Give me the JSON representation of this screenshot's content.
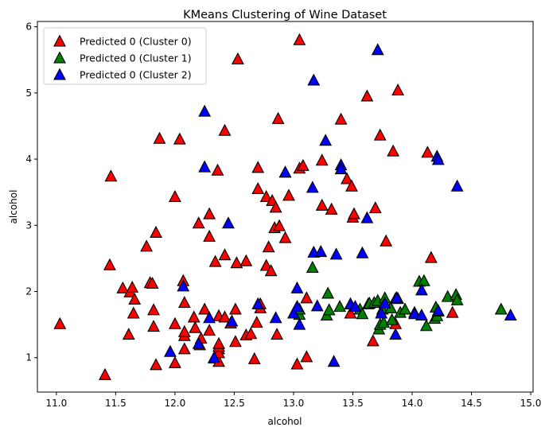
{
  "chart_data": {
    "type": "scatter",
    "title": "KMeans Clustering of Wine Dataset",
    "xlabel": "alcohol",
    "ylabel": "alcohol",
    "xlim": [
      10.84,
      15.02
    ],
    "ylim": [
      0.48,
      6.08
    ],
    "xticks": [
      "11.0",
      "11.5",
      "12.0",
      "12.5",
      "13.0",
      "13.5",
      "14.0",
      "14.5",
      "15.0"
    ],
    "yticks": [
      "1",
      "2",
      "3",
      "4",
      "5",
      "6"
    ],
    "xtick_values": [
      11.0,
      11.5,
      12.0,
      12.5,
      13.0,
      13.5,
      14.0,
      14.5,
      15.0
    ],
    "ytick_values": [
      1,
      2,
      3,
      4,
      5,
      6
    ],
    "grid": false,
    "legend_position": "top-left",
    "marker": "triangle",
    "series": [
      {
        "name": "Predicted 0 (Cluster 0)",
        "color": "#ff0000",
        "points": [
          [
            11.03,
            1.51
          ],
          [
            11.41,
            0.74
          ],
          [
            11.45,
            2.4
          ],
          [
            11.46,
            3.74
          ],
          [
            11.56,
            2.05
          ],
          [
            11.61,
            1.35
          ],
          [
            11.62,
            1.99
          ],
          [
            11.64,
            2.06
          ],
          [
            11.65,
            1.67
          ],
          [
            11.66,
            1.88
          ],
          [
            11.76,
            2.68
          ],
          [
            11.79,
            2.13
          ],
          [
            11.81,
            2.12
          ],
          [
            11.82,
            1.72
          ],
          [
            11.82,
            1.47
          ],
          [
            11.84,
            0.89
          ],
          [
            11.84,
            2.89
          ],
          [
            11.87,
            4.31
          ],
          [
            12.0,
            0.92
          ],
          [
            12.0,
            1.51
          ],
          [
            12.0,
            3.43
          ],
          [
            12.04,
            4.3
          ],
          [
            12.07,
            2.16
          ],
          [
            12.08,
            1.33
          ],
          [
            12.08,
            1.39
          ],
          [
            12.08,
            1.13
          ],
          [
            12.08,
            1.83
          ],
          [
            12.16,
            1.61
          ],
          [
            12.17,
            1.45
          ],
          [
            12.2,
            3.03
          ],
          [
            12.21,
            1.19
          ],
          [
            12.22,
            1.29
          ],
          [
            12.25,
            1.73
          ],
          [
            12.29,
            3.17
          ],
          [
            12.29,
            2.83
          ],
          [
            12.29,
            1.41
          ],
          [
            12.33,
            0.99
          ],
          [
            12.34,
            2.45
          ],
          [
            12.36,
            3.83
          ],
          [
            12.37,
            0.94
          ],
          [
            12.37,
            1.13
          ],
          [
            12.37,
            1.07
          ],
          [
            12.37,
            1.17
          ],
          [
            12.37,
            1.21
          ],
          [
            12.37,
            1.63
          ],
          [
            12.42,
            4.43
          ],
          [
            12.42,
            2.55
          ],
          [
            12.42,
            1.61
          ],
          [
            12.47,
            1.52
          ],
          [
            12.51,
            1.73
          ],
          [
            12.51,
            1.24
          ],
          [
            12.52,
            2.43
          ],
          [
            12.53,
            5.51
          ],
          [
            12.6,
            1.34
          ],
          [
            12.6,
            2.46
          ],
          [
            12.64,
            1.36
          ],
          [
            12.67,
            0.98
          ],
          [
            12.69,
            1.53
          ],
          [
            12.7,
            3.87
          ],
          [
            12.7,
            3.55
          ],
          [
            12.72,
            1.75
          ],
          [
            12.72,
            1.81
          ],
          [
            12.77,
            3.43
          ],
          [
            12.77,
            2.39
          ],
          [
            12.79,
            2.67
          ],
          [
            12.81,
            2.31
          ],
          [
            12.82,
            3.37
          ],
          [
            12.84,
            2.96
          ],
          [
            12.85,
            3.27
          ],
          [
            12.86,
            1.35
          ],
          [
            12.87,
            4.61
          ],
          [
            12.88,
            2.99
          ],
          [
            12.93,
            2.81
          ],
          [
            12.93,
            3.8
          ],
          [
            12.96,
            3.45
          ],
          [
            13.03,
            0.9
          ],
          [
            13.05,
            5.8
          ],
          [
            13.05,
            3.86
          ],
          [
            13.08,
            3.9
          ],
          [
            13.11,
            1.9
          ],
          [
            13.11,
            1.01
          ],
          [
            13.24,
            3.98
          ],
          [
            13.24,
            3.3
          ],
          [
            13.32,
            3.24
          ],
          [
            13.4,
            4.6
          ],
          [
            13.45,
            3.7
          ],
          [
            13.48,
            1.67
          ],
          [
            13.49,
            3.59
          ],
          [
            13.5,
            3.12
          ],
          [
            13.51,
            3.17
          ],
          [
            13.62,
            4.95
          ],
          [
            13.67,
            1.25
          ],
          [
            13.69,
            3.26
          ],
          [
            13.73,
            4.36
          ],
          [
            13.78,
            2.76
          ],
          [
            13.82,
            1.75
          ],
          [
            13.84,
            4.12
          ],
          [
            13.86,
            1.51
          ],
          [
            13.88,
            5.04
          ],
          [
            14.13,
            4.1
          ],
          [
            14.16,
            2.51
          ],
          [
            14.34,
            1.68
          ]
        ]
      },
      {
        "name": "Predicted 0 (Cluster 1)",
        "color": "#008000",
        "points": [
          [
            13.05,
            1.65
          ],
          [
            13.05,
            1.73
          ],
          [
            13.16,
            2.36
          ],
          [
            13.28,
            1.64
          ],
          [
            13.29,
            1.97
          ],
          [
            13.3,
            1.72
          ],
          [
            13.39,
            1.77
          ],
          [
            13.48,
            1.81
          ],
          [
            13.56,
            1.73
          ],
          [
            13.58,
            1.66
          ],
          [
            13.63,
            1.81
          ],
          [
            13.64,
            1.82
          ],
          [
            13.68,
            1.83
          ],
          [
            13.71,
            1.86
          ],
          [
            13.72,
            1.43
          ],
          [
            13.73,
            1.5
          ],
          [
            13.74,
            1.67
          ],
          [
            13.75,
            1.73
          ],
          [
            13.76,
            1.53
          ],
          [
            13.77,
            1.9
          ],
          [
            13.82,
            1.75
          ],
          [
            13.83,
            1.57
          ],
          [
            13.86,
            1.89
          ],
          [
            13.87,
            1.9
          ],
          [
            13.88,
            1.89
          ],
          [
            13.9,
            1.68
          ],
          [
            13.94,
            1.73
          ],
          [
            14.02,
            1.68
          ],
          [
            14.06,
            2.15
          ],
          [
            14.1,
            2.16
          ],
          [
            14.12,
            1.48
          ],
          [
            14.19,
            1.59
          ],
          [
            14.2,
            1.76
          ],
          [
            14.21,
            1.63
          ],
          [
            14.22,
            1.7
          ],
          [
            14.3,
            1.92
          ],
          [
            14.37,
            1.95
          ],
          [
            14.38,
            1.87
          ],
          [
            14.75,
            1.73
          ]
        ]
      },
      {
        "name": "Predicted 0 (Cluster 2)",
        "color": "#0000ff",
        "points": [
          [
            11.96,
            1.09
          ],
          [
            12.07,
            2.08
          ],
          [
            12.2,
            1.21
          ],
          [
            12.25,
            4.72
          ],
          [
            12.25,
            3.88
          ],
          [
            12.29,
            1.6
          ],
          [
            12.33,
            1.0
          ],
          [
            12.45,
            3.03
          ],
          [
            12.48,
            1.55
          ],
          [
            12.7,
            1.81
          ],
          [
            12.85,
            1.6
          ],
          [
            12.93,
            3.8
          ],
          [
            13.0,
            1.67
          ],
          [
            13.03,
            2.05
          ],
          [
            13.03,
            1.77
          ],
          [
            13.05,
            1.5
          ],
          [
            13.16,
            3.57
          ],
          [
            13.17,
            5.19
          ],
          [
            13.17,
            2.59
          ],
          [
            13.2,
            1.78
          ],
          [
            13.23,
            2.6
          ],
          [
            13.27,
            4.28
          ],
          [
            13.34,
            0.94
          ],
          [
            13.36,
            2.56
          ],
          [
            13.4,
            3.91
          ],
          [
            13.4,
            3.85
          ],
          [
            13.48,
            1.81
          ],
          [
            13.52,
            1.77
          ],
          [
            13.58,
            2.58
          ],
          [
            13.62,
            3.11
          ],
          [
            13.71,
            5.65
          ],
          [
            13.74,
            1.67
          ],
          [
            13.77,
            1.82
          ],
          [
            13.86,
            1.35
          ],
          [
            13.87,
            1.9
          ],
          [
            14.02,
            1.66
          ],
          [
            14.08,
            2.02
          ],
          [
            14.08,
            1.64
          ],
          [
            14.21,
            4.04
          ],
          [
            14.22,
            3.99
          ],
          [
            14.22,
            1.71
          ],
          [
            14.38,
            3.59
          ],
          [
            14.83,
            1.64
          ]
        ]
      }
    ]
  }
}
